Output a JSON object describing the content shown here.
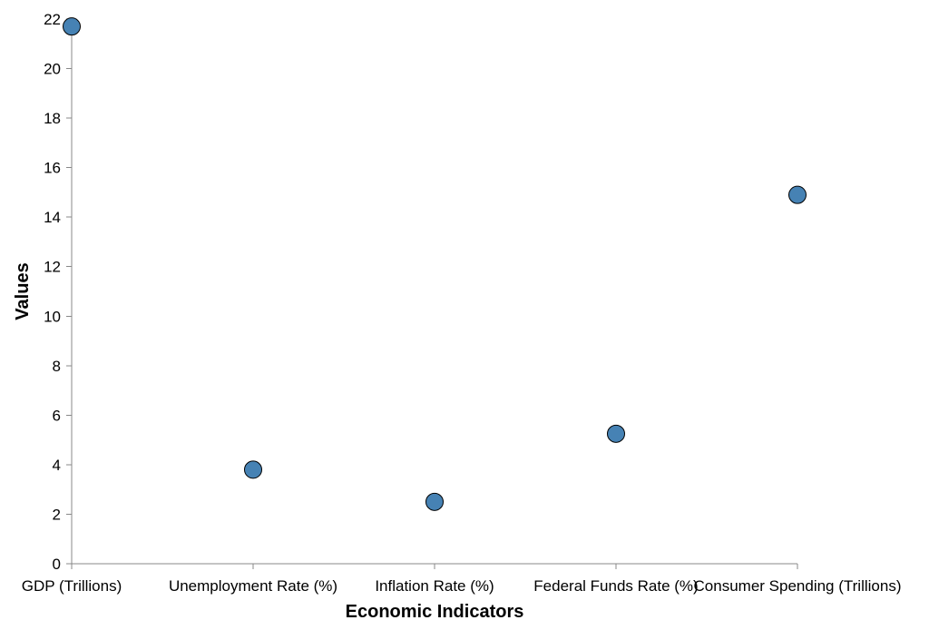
{
  "chart_data": {
    "type": "scatter",
    "title": "",
    "xlabel": "Economic Indicators",
    "ylabel": "Values",
    "categories": [
      "GDP (Trillions)",
      "Unemployment Rate (%)",
      "Inflation Rate (%)",
      "Federal Funds Rate (%)",
      "Consumer Spending (Trillions)"
    ],
    "values": [
      21.7,
      3.8,
      2.5,
      5.25,
      14.9
    ],
    "ylim": [
      0,
      22
    ],
    "yticks": [
      0,
      2,
      4,
      6,
      8,
      10,
      12,
      14,
      16,
      18,
      20,
      22
    ],
    "grid": false,
    "legend": "none",
    "point_color": "#4682b4",
    "point_stroke": "#000000"
  }
}
